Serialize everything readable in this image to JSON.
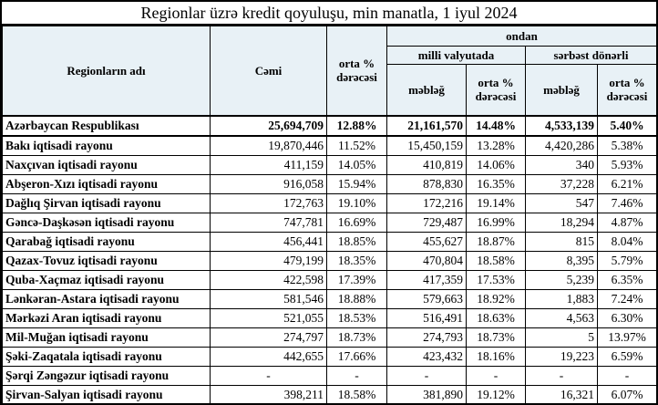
{
  "title": "Regionlar üzrə kredit qoyuluşu, min manatla, 1 iyul 2024",
  "colors": {
    "header_bg": "#e8f1f6",
    "border": "#000000",
    "text": "#000000",
    "background": "#ffffff"
  },
  "header": {
    "region": "Regionların adı",
    "total": "Cəmi",
    "avg_rate": "orta % dərəcəsi",
    "of_which": "ondan",
    "national_currency": "milli valyutada",
    "freely_convertible": "sərbəst dönərli",
    "amount_national": "məbləğ",
    "avg_rate_national": "orta % dərəcəsi",
    "amount_fx": "məbləğ",
    "avg_rate_fx": "orta % dərəcəsi"
  },
  "chart_data": {
    "type": "table",
    "title": "Regionlar üzrə kredit qoyuluşu, min manatla, 1 iyul 2024",
    "columns": [
      "Regionların adı",
      "Cəmi",
      "orta % dərəcəsi",
      "ondan / milli valyutada / məbləğ",
      "ondan / milli valyutada / orta % dərəcəsi",
      "ondan / sərbəst dönərli / məbləğ",
      "ondan / sərbəst dönərli / orta % dərəcəsi"
    ],
    "rows": [
      {
        "bold": true,
        "cells": [
          "Azərbaycan Respublikası",
          "25,694,709",
          "12.88%",
          "21,161,570",
          "14.48%",
          "4,533,139",
          "5.40%"
        ]
      },
      {
        "bold": false,
        "cells": [
          "Bakı iqtisadi rayonu",
          "19,870,446",
          "11.52%",
          "15,450,159",
          "13.28%",
          "4,420,286",
          "5.38%"
        ]
      },
      {
        "bold": false,
        "cells": [
          "Naxçıvan iqtisadi rayonu",
          "411,159",
          "14.05%",
          "410,819",
          "14.06%",
          "340",
          "5.93%"
        ]
      },
      {
        "bold": false,
        "cells": [
          "Abşeron-Xızı iqtisadi rayonu",
          "916,058",
          "15.94%",
          "878,830",
          "16.35%",
          "37,228",
          "6.21%"
        ]
      },
      {
        "bold": false,
        "cells": [
          "Dağlıq Şirvan iqtisadi rayonu",
          "172,763",
          "19.10%",
          "172,216",
          "19.14%",
          "547",
          "7.46%"
        ]
      },
      {
        "bold": false,
        "cells": [
          "Gəncə-Daşkəsən iqtisadi rayonu",
          "747,781",
          "16.69%",
          "729,487",
          "16.99%",
          "18,294",
          "4.87%"
        ]
      },
      {
        "bold": false,
        "cells": [
          "Qarabağ iqtisadi rayonu",
          "456,441",
          "18.85%",
          "455,627",
          "18.87%",
          "815",
          "8.04%"
        ]
      },
      {
        "bold": false,
        "cells": [
          "Qazax-Tovuz iqtisadi rayonu",
          "479,199",
          "18.35%",
          "470,804",
          "18.58%",
          "8,395",
          "5.79%"
        ]
      },
      {
        "bold": false,
        "cells": [
          "Quba-Xaçmaz iqtisadi rayonu",
          "422,598",
          "17.39%",
          "417,359",
          "17.53%",
          "5,239",
          "6.35%"
        ]
      },
      {
        "bold": false,
        "cells": [
          "Lənkəran-Astara iqtisadi rayonu",
          "581,546",
          "18.88%",
          "579,663",
          "18.92%",
          "1,883",
          "7.24%"
        ]
      },
      {
        "bold": false,
        "cells": [
          "Mərkəzi Aran iqtisadi rayonu",
          "521,055",
          "18.53%",
          "516,491",
          "18.63%",
          "4,563",
          "6.30%"
        ]
      },
      {
        "bold": false,
        "cells": [
          "Mil-Muğan iqtisadi rayonu",
          "274,797",
          "18.73%",
          "274,793",
          "18.73%",
          "5",
          "13.97%"
        ]
      },
      {
        "bold": false,
        "cells": [
          "Şəki-Zaqatala iqtisadi rayonu",
          "442,655",
          "17.66%",
          "423,432",
          "18.16%",
          "19,223",
          "6.59%"
        ]
      },
      {
        "bold": false,
        "cells": [
          "Şərqi Zəngəzur iqtisadi rayonu",
          "-",
          "-",
          "-",
          "-",
          "-",
          "-"
        ]
      },
      {
        "bold": false,
        "cells": [
          "Şirvan-Salyan iqtisadi rayonu",
          "398,211",
          "18.58%",
          "381,890",
          "19.12%",
          "16,321",
          "6.07%"
        ]
      }
    ]
  }
}
